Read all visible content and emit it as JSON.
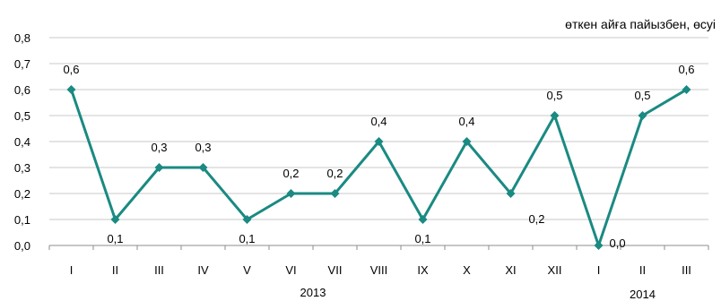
{
  "chart_data": {
    "type": "line",
    "subtitle": "өткен айға пайызбен, өсуі",
    "categories": [
      "I",
      "II",
      "III",
      "IV",
      "V",
      "VI",
      "VII",
      "VIII",
      "IX",
      "X",
      "XI",
      "XII",
      "I",
      "II",
      "III"
    ],
    "year_groups": [
      {
        "label": "2013",
        "from": 0,
        "to": 11
      },
      {
        "label": "2014",
        "from": 12,
        "to": 14
      }
    ],
    "series": [
      {
        "values": [
          0.6,
          0.1,
          0.3,
          0.3,
          0.1,
          0.2,
          0.2,
          0.4,
          0.1,
          0.4,
          0.2,
          0.5,
          0.0,
          0.5,
          0.6
        ],
        "data_labels": [
          "0,6",
          "0,1",
          "0,3",
          "0,3",
          "0,1",
          "0,2",
          "0,2",
          "0,4",
          "0,1",
          "0,4",
          "",
          "0,5",
          "0,0",
          "0,5",
          "0,6"
        ],
        "label_positions": [
          "above",
          "below",
          "above",
          "above",
          "below",
          "above",
          "above",
          "above",
          "below",
          "above",
          "none",
          "above",
          "right",
          "above",
          "above"
        ],
        "color": "#1a8a82"
      }
    ],
    "extra_labels": [
      {
        "text": "0,2",
        "near_index": 11,
        "value": 0.2
      }
    ],
    "ylim": [
      0,
      0.8
    ],
    "yticks": [
      "0,0",
      "0,1",
      "0,2",
      "0,3",
      "0,4",
      "0,5",
      "0,6",
      "0,7",
      "0,8"
    ],
    "grid": true,
    "gridline_color": "#c8c8c8"
  }
}
